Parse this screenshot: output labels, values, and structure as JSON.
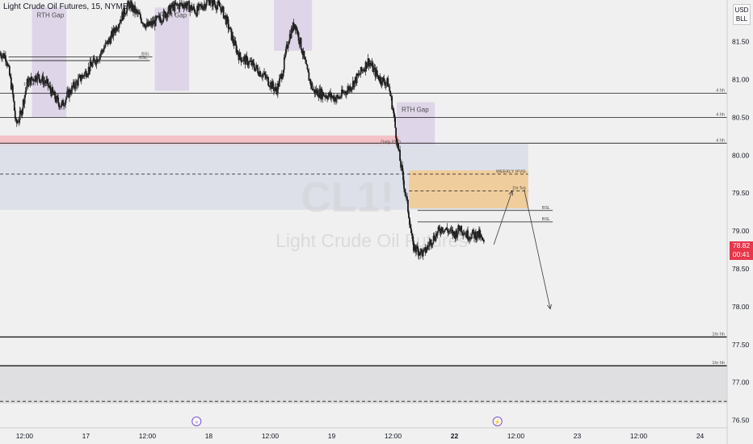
{
  "header": {
    "instrument": "Light Crude Oil Futures, 15, NYMEX",
    "currency_top": "USD",
    "currency_bottom": "BLL"
  },
  "price_tag": {
    "price": "78.82",
    "countdown": "00:41",
    "color": "#e8374a"
  },
  "watermark": {
    "symbol": "CL1!",
    "name": "Light Crude Oil Futures"
  },
  "colors": {
    "background": "#f0f0f0",
    "candle": "#1b1b1b",
    "gap_zone": "#d8cce6",
    "red_zone": "#f4b8c0",
    "blue_zone": "#d9dde8",
    "orange_zone": "#f3c98e",
    "bottom_zone": "#dcdcdf",
    "event_marker": "#7b4ed6"
  },
  "chart_data": {
    "type": "candlestick",
    "title": "Light Crude Oil Futures, 15, NYMEX",
    "ylim": [
      76.4,
      82.05
    ],
    "y_ticks": [
      81.5,
      81.0,
      80.5,
      80.0,
      79.5,
      79.0,
      78.5,
      78.0,
      77.5,
      77.0,
      76.5
    ],
    "x_ticks": [
      "12:00",
      "17",
      "12:00",
      "18",
      "12:00",
      "19",
      "12:00",
      "22",
      "12:00",
      "23",
      "12:00",
      "24"
    ],
    "x_tick_slots": [
      0.2,
      0.7,
      1.2,
      1.7,
      2.2,
      2.7,
      3.2,
      3.7,
      4.2,
      4.7,
      5.2,
      5.7
    ],
    "x_range": [
      0,
      5.92
    ],
    "price_path": [
      [
        0.0,
        81.35
      ],
      [
        0.05,
        81.3
      ],
      [
        0.1,
        80.85
      ],
      [
        0.13,
        80.4
      ],
      [
        0.17,
        80.55
      ],
      [
        0.22,
        80.95
      ],
      [
        0.3,
        81.05
      ],
      [
        0.38,
        80.95
      ],
      [
        0.45,
        80.75
      ],
      [
        0.5,
        80.65
      ],
      [
        0.55,
        80.8
      ],
      [
        0.62,
        80.95
      ],
      [
        0.7,
        81.1
      ],
      [
        0.8,
        81.3
      ],
      [
        0.9,
        81.55
      ],
      [
        0.98,
        81.8
      ],
      [
        1.05,
        82.0
      ],
      [
        1.1,
        81.9
      ],
      [
        1.2,
        81.7
      ],
      [
        1.3,
        81.8
      ],
      [
        1.4,
        81.95
      ],
      [
        1.5,
        82.0
      ],
      [
        1.6,
        81.9
      ],
      [
        1.7,
        82.05
      ],
      [
        1.8,
        81.95
      ],
      [
        1.85,
        81.75
      ],
      [
        1.9,
        81.5
      ],
      [
        1.95,
        81.3
      ],
      [
        2.05,
        81.2
      ],
      [
        2.15,
        81.05
      ],
      [
        2.25,
        80.85
      ],
      [
        2.3,
        81.1
      ],
      [
        2.35,
        81.55
      ],
      [
        2.4,
        81.75
      ],
      [
        2.45,
        81.45
      ],
      [
        2.5,
        81.1
      ],
      [
        2.55,
        80.85
      ],
      [
        2.65,
        80.8
      ],
      [
        2.75,
        80.75
      ],
      [
        2.85,
        80.9
      ],
      [
        2.92,
        81.05
      ],
      [
        3.0,
        81.25
      ],
      [
        3.05,
        81.1
      ],
      [
        3.1,
        81.0
      ],
      [
        3.16,
        80.95
      ],
      [
        3.2,
        80.6
      ],
      [
        3.23,
        80.2
      ],
      [
        3.27,
        79.8
      ],
      [
        3.3,
        79.5
      ],
      [
        3.33,
        79.2
      ],
      [
        3.36,
        78.8
      ],
      [
        3.4,
        78.75
      ],
      [
        3.45,
        78.7
      ],
      [
        3.5,
        78.85
      ],
      [
        3.55,
        78.95
      ],
      [
        3.6,
        79.05
      ],
      [
        3.65,
        79.0
      ],
      [
        3.7,
        78.95
      ],
      [
        3.75,
        79.05
      ],
      [
        3.8,
        78.95
      ],
      [
        3.85,
        78.95
      ],
      [
        3.9,
        78.95
      ],
      [
        3.94,
        78.82
      ]
    ],
    "zones": [
      {
        "label": "RTH Gap",
        "x": [
          0.26,
          0.54
        ],
        "y": [
          80.5,
          81.95
        ],
        "color": "gap_zone"
      },
      {
        "label": "RTH Gap",
        "x": [
          1.26,
          1.54
        ],
        "y": [
          80.85,
          81.95
        ],
        "color": "gap_zone"
      },
      {
        "label": "",
        "x": [
          2.23,
          2.54
        ],
        "y": [
          81.38,
          82.05
        ],
        "color": "gap_zone"
      },
      {
        "label": "RTH Gap",
        "x": [
          3.23,
          3.54
        ],
        "y": [
          80.13,
          80.7
        ],
        "color": "gap_zone"
      },
      {
        "label": "",
        "x": [
          0.0,
          3.25
        ],
        "y": [
          80.12,
          80.26
        ],
        "color": "red_zone"
      },
      {
        "label": "",
        "x": [
          0.0,
          4.3
        ],
        "y": [
          79.28,
          80.15
        ],
        "color": "blue_zone"
      },
      {
        "label": "",
        "x": [
          3.33,
          4.3
        ],
        "y": [
          79.3,
          79.8
        ],
        "color": "orange_zone"
      },
      {
        "label": "",
        "x": [
          0.0,
          5.92
        ],
        "y": [
          76.72,
          77.22
        ],
        "color": "bottom_zone"
      }
    ],
    "levels": [
      {
        "price": 81.3,
        "x": [
          0.07,
          1.24
        ],
        "style": "solid",
        "label": "BSL"
      },
      {
        "price": 81.25,
        "x": [
          0.07,
          1.22
        ],
        "style": "solid",
        "label": "BSL"
      },
      {
        "price": 80.82,
        "x": [
          0.0,
          5.92
        ],
        "style": "solid",
        "label": "4 hh"
      },
      {
        "price": 80.5,
        "x": [
          0.0,
          5.92
        ],
        "style": "solid",
        "label": "4 hh"
      },
      {
        "price": 80.16,
        "x": [
          0.0,
          5.92
        ],
        "style": "solid",
        "label": "4 hh"
      },
      {
        "price": 79.75,
        "x": [
          0.0,
          4.3
        ],
        "style": "dashed",
        "label": "WEEKLY IFVG"
      },
      {
        "price": 79.53,
        "x": [
          3.33,
          4.3
        ],
        "style": "dashed",
        "label": "1hr fvg"
      },
      {
        "price": 79.27,
        "x": [
          3.4,
          4.5
        ],
        "style": "solid",
        "label": "BSL"
      },
      {
        "price": 79.12,
        "x": [
          3.4,
          4.5
        ],
        "style": "solid",
        "label": "BSL"
      },
      {
        "price": 77.6,
        "x": [
          0.0,
          5.92
        ],
        "style": "solid",
        "label": "1hr hh"
      },
      {
        "price": 77.22,
        "x": [
          0.0,
          5.92
        ],
        "style": "solid",
        "label": "1hr hh"
      },
      {
        "price": 76.75,
        "x": [
          0.0,
          5.92
        ],
        "style": "dashed",
        "label": ""
      }
    ],
    "annotations": [
      {
        "text": "15min",
        "x": 0.19,
        "y": 80.92
      },
      {
        "text": "Daily FVG",
        "x": 3.1,
        "y": 80.16
      }
    ],
    "projection_arrows": [
      {
        "from": [
          4.02,
          78.82
        ],
        "to": [
          4.17,
          79.53
        ]
      },
      {
        "from": [
          4.27,
          79.53
        ],
        "to": [
          4.48,
          77.97
        ]
      }
    ],
    "event_markers": [
      {
        "symbol": "»",
        "x": 1.6
      },
      {
        "symbol": "⚡",
        "x": 4.05
      }
    ]
  }
}
